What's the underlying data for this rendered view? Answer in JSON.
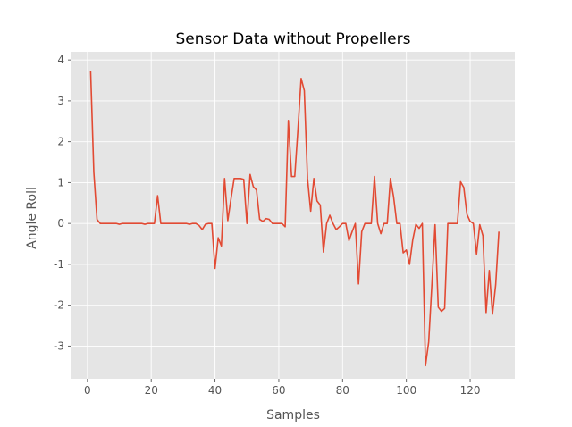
{
  "chart_data": {
    "type": "line",
    "title": "Sensor Data without Propellers",
    "xlabel": "Samples",
    "ylabel": "Angle Roll",
    "xlim": [
      -5,
      134
    ],
    "ylim": [
      -3.8,
      4.2
    ],
    "xticks": [
      0,
      20,
      40,
      60,
      80,
      100,
      120
    ],
    "yticks": [
      -3,
      -2,
      -1,
      0,
      1,
      2,
      3,
      4
    ],
    "grid": true,
    "style": "ggplot",
    "colors": {
      "panel": "#E5E5E5",
      "grid": "#FFFFFF",
      "line": "#E24A33",
      "text": "#555555"
    },
    "series": [
      {
        "x": [
          1,
          2,
          3,
          4,
          5,
          6,
          7,
          8,
          9,
          10,
          11,
          12,
          13,
          14,
          15,
          16,
          17,
          18,
          19,
          20,
          21,
          22,
          23,
          24,
          25,
          26,
          27,
          28,
          29,
          30,
          31,
          32,
          33,
          34,
          35,
          36,
          37,
          38,
          39,
          40,
          41,
          42,
          43,
          44,
          45,
          46,
          47,
          48,
          49,
          50,
          51,
          52,
          53,
          54,
          55,
          56,
          57,
          58,
          59,
          60,
          61,
          62,
          63,
          64,
          65,
          66,
          67,
          68,
          69,
          70,
          71,
          72,
          73,
          74,
          75,
          76,
          77,
          78,
          79,
          80,
          81,
          82,
          83,
          84,
          85,
          86,
          87,
          88,
          89,
          90,
          91,
          92,
          93,
          94,
          95,
          96,
          97,
          98,
          99,
          100,
          101,
          102,
          103,
          104,
          105,
          106,
          107,
          108,
          109,
          110,
          111,
          112,
          113,
          114,
          115,
          116,
          117,
          118,
          119,
          120,
          121,
          122,
          123,
          124,
          125,
          126,
          127,
          128,
          129
        ],
        "values": [
          3.73,
          1.25,
          0.1,
          0.0,
          0.0,
          0.0,
          0.0,
          0.0,
          0.0,
          -0.02,
          0.0,
          0.0,
          0.0,
          0.0,
          0.0,
          0.0,
          0.0,
          -0.02,
          0.0,
          0.0,
          0.0,
          0.68,
          0.0,
          0.0,
          0.0,
          0.0,
          0.0,
          0.0,
          0.0,
          0.0,
          0.0,
          -0.02,
          0.0,
          0.0,
          -0.05,
          -0.15,
          -0.02,
          0.0,
          0.0,
          -1.1,
          -0.35,
          -0.55,
          1.1,
          0.07,
          0.6,
          1.1,
          1.1,
          1.1,
          1.08,
          0.0,
          1.2,
          0.9,
          0.82,
          0.1,
          0.05,
          0.12,
          0.1,
          0.0,
          0.0,
          0.0,
          0.0,
          -0.08,
          2.52,
          1.15,
          1.15,
          2.3,
          3.55,
          3.25,
          1.1,
          0.3,
          1.1,
          0.55,
          0.45,
          -0.7,
          0.0,
          0.2,
          0.0,
          -0.15,
          -0.08,
          0.0,
          0.0,
          -0.42,
          -0.2,
          0.0,
          -1.48,
          -0.2,
          0.0,
          0.0,
          0.0,
          1.15,
          0.0,
          -0.25,
          0.0,
          0.0,
          1.1,
          0.65,
          0.0,
          0.0,
          -0.72,
          -0.65,
          -1.0,
          -0.4,
          -0.02,
          -0.12,
          0.0,
          -3.48,
          -2.9,
          -1.5,
          -0.03,
          -2.05,
          -2.15,
          -2.08,
          0.0,
          0.0,
          0.0,
          0.0,
          1.02,
          0.88,
          0.22,
          0.05,
          0.0,
          -0.75,
          -0.03,
          -0.3,
          -2.18,
          -1.15,
          -2.22,
          -1.5,
          -0.2
        ]
      }
    ]
  }
}
